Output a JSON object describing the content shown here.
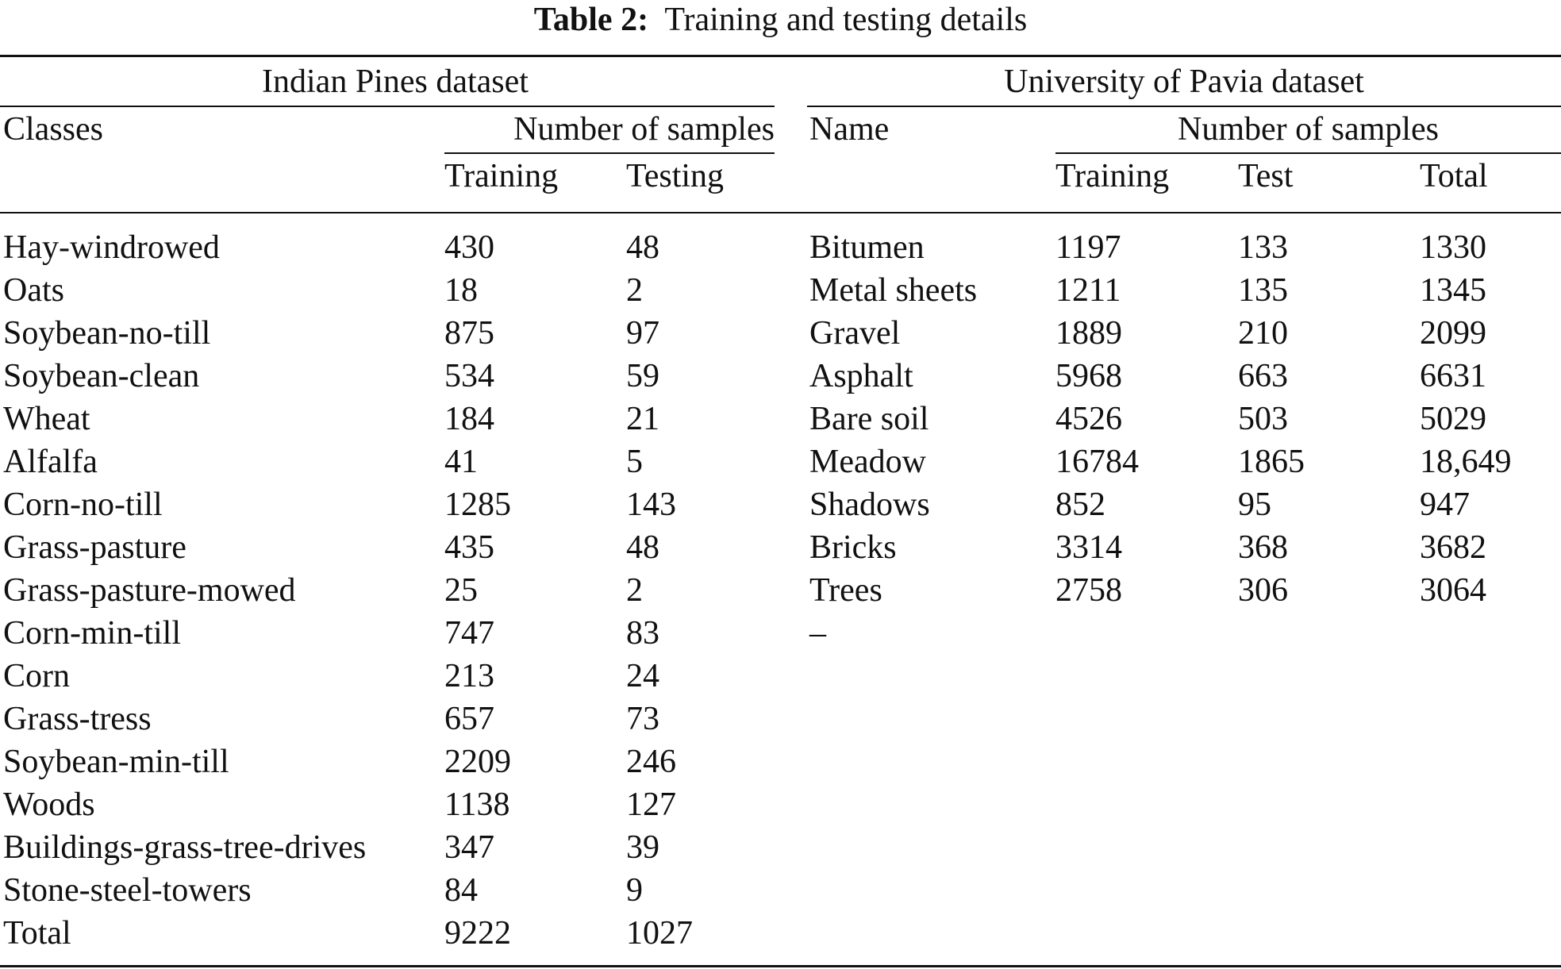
{
  "caption": {
    "label": "Table 2:",
    "text": "Training and testing details"
  },
  "indian_pines": {
    "title": "Indian Pines dataset",
    "classes_header": "Classes",
    "samples_header": "Number of samples",
    "training_header": "Training",
    "testing_header": "Testing",
    "rows": [
      {
        "name": "Hay-windrowed",
        "training": "430",
        "testing": "48"
      },
      {
        "name": "Oats",
        "training": "18",
        "testing": "2"
      },
      {
        "name": "Soybean-no-till",
        "training": "875",
        "testing": "97"
      },
      {
        "name": "Soybean-clean",
        "training": "534",
        "testing": "59"
      },
      {
        "name": "Wheat",
        "training": "184",
        "testing": "21"
      },
      {
        "name": "Alfalfa",
        "training": "41",
        "testing": "5"
      },
      {
        "name": "Corn-no-till",
        "training": "1285",
        "testing": "143"
      },
      {
        "name": "Grass-pasture",
        "training": "435",
        "testing": "48"
      },
      {
        "name": "Grass-pasture-mowed",
        "training": "25",
        "testing": "2"
      },
      {
        "name": "Corn-min-till",
        "training": "747",
        "testing": "83"
      },
      {
        "name": "Corn",
        "training": "213",
        "testing": "24"
      },
      {
        "name": "Grass-tress",
        "training": "657",
        "testing": "73"
      },
      {
        "name": "Soybean-min-till",
        "training": "2209",
        "testing": "246"
      },
      {
        "name": "Woods",
        "training": "1138",
        "testing": "127"
      },
      {
        "name": "Buildings-grass-tree-drives",
        "training": "347",
        "testing": "39"
      },
      {
        "name": "Stone-steel-towers",
        "training": "84",
        "testing": "9"
      },
      {
        "name": "Total",
        "training": "9222",
        "testing": "1027"
      }
    ]
  },
  "pavia": {
    "title": "University of Pavia dataset",
    "name_header": "Name",
    "samples_header": "Number of samples",
    "training_header": "Training",
    "test_header": "Test",
    "total_header": "Total",
    "rows": [
      {
        "name": "Bitumen",
        "training": "1197",
        "test": "133",
        "total": "1330"
      },
      {
        "name": "Metal sheets",
        "training": "1211",
        "test": "135",
        "total": "1345"
      },
      {
        "name": "Gravel",
        "training": "1889",
        "test": "210",
        "total": "2099"
      },
      {
        "name": "Asphalt",
        "training": "5968",
        "test": "663",
        "total": "6631"
      },
      {
        "name": "Bare soil",
        "training": "4526",
        "test": "503",
        "total": "5029"
      },
      {
        "name": "Meadow",
        "training": "16784",
        "test": "1865",
        "total": "18,649"
      },
      {
        "name": "Shadows",
        "training": "852",
        "test": "95",
        "total": "947"
      },
      {
        "name": "Bricks",
        "training": "3314",
        "test": "368",
        "total": "3682"
      },
      {
        "name": "Trees",
        "training": "2758",
        "test": "306",
        "total": "3064"
      },
      {
        "name": "–",
        "training": "",
        "test": "",
        "total": ""
      }
    ]
  }
}
